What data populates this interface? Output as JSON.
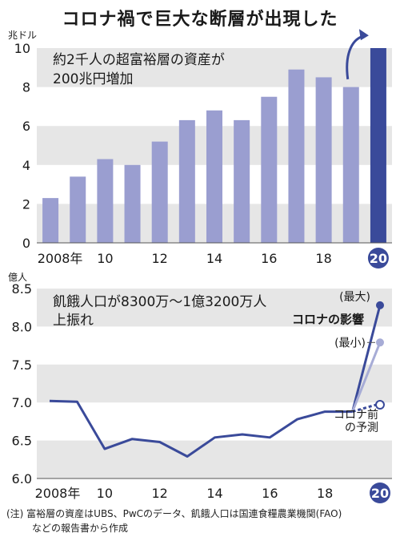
{
  "title": "コロナ禍で巨大な断層が出現した",
  "colors": {
    "bar": "#9a9ed0",
    "bar_highlight": "#3a4a9a",
    "line": "#3a4a9a",
    "line_light": "#a7acd6",
    "band": "#e6e6e6",
    "badge": "#3a4a9a"
  },
  "chart_data": [
    {
      "type": "bar",
      "ylabel": "兆ドル",
      "ylim": [
        0,
        10
      ],
      "yticks": [
        "0",
        "2",
        "4",
        "6",
        "8",
        "10"
      ],
      "xticks": [
        "2008年",
        "10",
        "12",
        "14",
        "16",
        "18",
        "20"
      ],
      "categories": [
        "2008",
        "2009",
        "2010",
        "2011",
        "2012",
        "2013",
        "2014",
        "2015",
        "2016",
        "2017",
        "2018",
        "2019",
        "2020"
      ],
      "values": [
        2.3,
        3.4,
        4.3,
        4.0,
        5.2,
        6.3,
        6.8,
        6.3,
        7.5,
        8.9,
        8.5,
        8.0,
        10.2
      ],
      "highlight_index": 12,
      "annotation": [
        "約2千人の超富裕層の資産が",
        "200兆円増加"
      ]
    },
    {
      "type": "line",
      "ylabel": "億人",
      "ylim": [
        6.0,
        8.5
      ],
      "yticks": [
        "6.0",
        "6.5",
        "7.0",
        "7.5",
        "8.0",
        "8.5"
      ],
      "xticks": [
        "2008年",
        "10",
        "12",
        "14",
        "16",
        "18",
        "20"
      ],
      "x": [
        2008,
        2009,
        2010,
        2011,
        2012,
        2013,
        2014,
        2015,
        2016,
        2017,
        2018,
        2019
      ],
      "values": [
        7.02,
        7.01,
        6.39,
        6.52,
        6.48,
        6.29,
        6.54,
        6.58,
        6.54,
        6.78,
        6.88,
        6.88
      ],
      "scenarios": [
        {
          "label": "(最大)",
          "value": 8.28
        },
        {
          "label": "(最小)",
          "value": 7.79
        },
        {
          "label": "コロナ前の予測",
          "label_lines": [
            "コロナ前",
            "の予測"
          ],
          "value": 6.97
        }
      ],
      "covid_label": "コロナの影響",
      "annotation": [
        "飢餓人口が8300万〜1億3200万人",
        "上振れ"
      ]
    }
  ],
  "notes": [
    "(注) 富裕層の資産はUBS、PwCのデータ、飢餓人口は国連食糧農業機関(FAO)",
    "などの報告書から作成"
  ]
}
